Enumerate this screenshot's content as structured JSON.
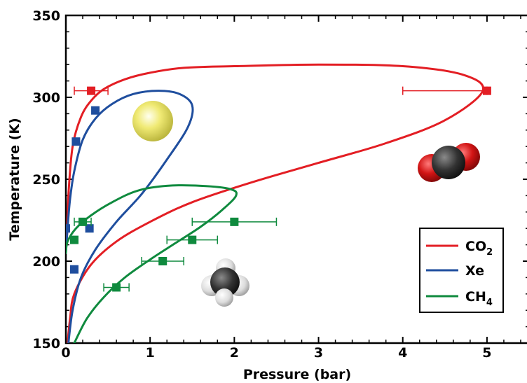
{
  "chart_data": {
    "type": "line",
    "xlabel": "Pressure (bar)",
    "ylabel": "Temperature (K)",
    "xlim": [
      0,
      5.5
    ],
    "ylim": [
      150,
      350
    ],
    "xticks": [
      0,
      1,
      2,
      3,
      4,
      5
    ],
    "yticks": [
      150,
      200,
      250,
      300,
      350
    ],
    "xtick_labels": [
      "0",
      "1",
      "2",
      "3",
      "4",
      "5"
    ],
    "ytick_labels": [
      "150",
      "200",
      "250",
      "300",
      "350"
    ],
    "grid": false,
    "legend_position": "lower-right",
    "series": [
      {
        "name": "CO2",
        "label_main": "CO",
        "label_sub": "2",
        "color": "#e31e24",
        "curve": [
          [
            0.02,
            150
          ],
          [
            0.05,
            165
          ],
          [
            0.1,
            180
          ],
          [
            0.3,
            198
          ],
          [
            0.6,
            212
          ],
          [
            1.0,
            224
          ],
          [
            1.5,
            236
          ],
          [
            2.2,
            248
          ],
          [
            3.0,
            260
          ],
          [
            3.8,
            272
          ],
          [
            4.5,
            286
          ],
          [
            4.95,
            304
          ],
          [
            4.7,
            314
          ],
          [
            4.0,
            319
          ],
          [
            3.0,
            320
          ],
          [
            2.0,
            319
          ],
          [
            1.4,
            318
          ],
          [
            1.0,
            315
          ],
          [
            0.7,
            311
          ],
          [
            0.45,
            305
          ],
          [
            0.3,
            298
          ],
          [
            0.18,
            288
          ],
          [
            0.08,
            270
          ],
          [
            0.03,
            240
          ],
          [
            0.01,
            210
          ]
        ],
        "points": [
          {
            "x": 0.3,
            "y": 304,
            "xerr": [
              0.1,
              0.5
            ]
          },
          {
            "x": 5.0,
            "y": 304,
            "xerr": [
              4.0,
              5.0
            ]
          }
        ]
      },
      {
        "name": "Xe",
        "label_main": "Xe",
        "label_sub": "",
        "color": "#1f4e9e",
        "curve": [
          [
            0.03,
            150
          ],
          [
            0.08,
            170
          ],
          [
            0.18,
            190
          ],
          [
            0.35,
            207
          ],
          [
            0.6,
            224
          ],
          [
            0.9,
            241
          ],
          [
            1.2,
            262
          ],
          [
            1.45,
            282
          ],
          [
            1.5,
            295
          ],
          [
            1.35,
            302
          ],
          [
            1.1,
            304
          ],
          [
            0.8,
            302
          ],
          [
            0.55,
            296
          ],
          [
            0.35,
            287
          ],
          [
            0.2,
            274
          ],
          [
            0.1,
            255
          ],
          [
            0.05,
            238
          ],
          [
            0.02,
            220
          ],
          [
            0.0,
            205
          ]
        ],
        "points": [
          {
            "x": 0.0,
            "y": 220,
            "xerr": null
          },
          {
            "x": 0.1,
            "y": 195,
            "xerr": null
          },
          {
            "x": 0.28,
            "y": 220,
            "xerr": null
          },
          {
            "x": 0.12,
            "y": 273,
            "xerr": null
          },
          {
            "x": 0.35,
            "y": 292,
            "xerr": null
          }
        ]
      },
      {
        "name": "CH4",
        "label_main": "CH",
        "label_sub": "4",
        "color": "#0f8a3e",
        "curve": [
          [
            0.1,
            150
          ],
          [
            0.25,
            165
          ],
          [
            0.45,
            178
          ],
          [
            0.7,
            190
          ],
          [
            1.0,
            201
          ],
          [
            1.3,
            211
          ],
          [
            1.6,
            221
          ],
          [
            1.85,
            231
          ],
          [
            2.02,
            240
          ],
          [
            1.95,
            244
          ],
          [
            1.6,
            246
          ],
          [
            1.2,
            246
          ],
          [
            0.85,
            243
          ],
          [
            0.55,
            236
          ],
          [
            0.3,
            228
          ],
          [
            0.12,
            220
          ],
          [
            0.02,
            212
          ],
          [
            0.0,
            205
          ]
        ],
        "points": [
          {
            "x": 0.1,
            "y": 213,
            "xerr": null
          },
          {
            "x": 0.2,
            "y": 224,
            "xerr": [
              0.1,
              0.3
            ]
          },
          {
            "x": 0.6,
            "y": 184,
            "xerr": [
              0.45,
              0.75
            ]
          },
          {
            "x": 1.15,
            "y": 200,
            "xerr": [
              0.9,
              1.4
            ]
          },
          {
            "x": 1.5,
            "y": 213,
            "xerr": [
              1.2,
              1.8
            ]
          },
          {
            "x": 2.0,
            "y": 224,
            "xerr": [
              1.5,
              2.5
            ]
          }
        ]
      }
    ],
    "molecule_images": [
      {
        "name": "xenon-atom",
        "color": "#f2ee7a"
      },
      {
        "name": "co2-molecule",
        "colors": [
          "#d01818",
          "#333333",
          "#d01818"
        ]
      },
      {
        "name": "methane-molecule",
        "colors": [
          "#e8e8e8",
          "#3a3a3a"
        ]
      }
    ]
  }
}
